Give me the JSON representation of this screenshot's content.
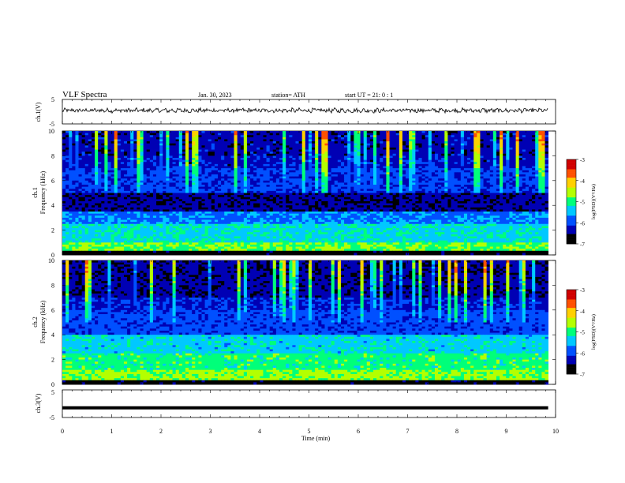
{
  "header": {
    "title": "VLF  Spectra",
    "date": "Jan. 30, 2023",
    "station": "station= ATH",
    "start": "start  UT  =    21: 0   : 1"
  },
  "colors": {
    "colormap": [
      "#000000",
      "#0000b4",
      "#0050ff",
      "#00c8ff",
      "#00ff7a",
      "#b4ff00",
      "#ffd000",
      "#ff5000",
      "#d00000",
      "#ffffff"
    ],
    "trace": "#000000"
  },
  "chart_data": [
    {
      "type": "line",
      "panel": "ch1-waveform",
      "ylabel": "ch.1(V)",
      "yticks": [
        "5",
        "-5"
      ],
      "ylim": [
        -5,
        5
      ],
      "xlim": [
        0,
        10
      ],
      "data_span_min": [
        0,
        9.85
      ],
      "series": [
        {
          "description_level": 0.5,
          "noise_amplitude": 0.5
        }
      ]
    },
    {
      "type": "heatmap",
      "panel": "ch1-spectrogram",
      "ylabel": "Frequency  (kHz)",
      "channel_label": "ch.1",
      "yticks": [
        "0",
        "2",
        "4",
        "6",
        "8",
        "10"
      ],
      "ylim": [
        0,
        10
      ],
      "xlim": [
        0,
        10
      ],
      "colorbar": {
        "label": "log(PSD)(V²/Hz)",
        "ticks": [
          "-3",
          "-4",
          "-5",
          "-6",
          "-7"
        ],
        "range": [
          -7,
          -3
        ]
      }
    },
    {
      "type": "heatmap",
      "panel": "ch2-spectrogram",
      "ylabel": "Frequency  (kHz)",
      "channel_label": "ch.2",
      "yticks": [
        "0",
        "2",
        "4",
        "6",
        "8",
        "10"
      ],
      "ylim": [
        0,
        10
      ],
      "xlim": [
        0,
        10
      ],
      "colorbar": {
        "label": "log(PSD)(V²/Hz)",
        "ticks": [
          "-3",
          "-4",
          "-5",
          "-6",
          "-7"
        ],
        "range": [
          -7,
          -3
        ]
      }
    },
    {
      "type": "line",
      "panel": "ch3-waveform",
      "ylabel": "ch.3(V)",
      "yticks": [
        "5",
        "-5"
      ],
      "ylim": [
        -5,
        5
      ],
      "xlim": [
        0,
        10
      ],
      "data_span_min": [
        0,
        9.85
      ],
      "series": [
        {
          "constant_value": -1.5
        }
      ]
    }
  ],
  "xaxis": {
    "label": "Time  (min)",
    "ticks": [
      "0",
      "1",
      "2",
      "3",
      "4",
      "5",
      "6",
      "7",
      "8",
      "9",
      "10"
    ]
  }
}
